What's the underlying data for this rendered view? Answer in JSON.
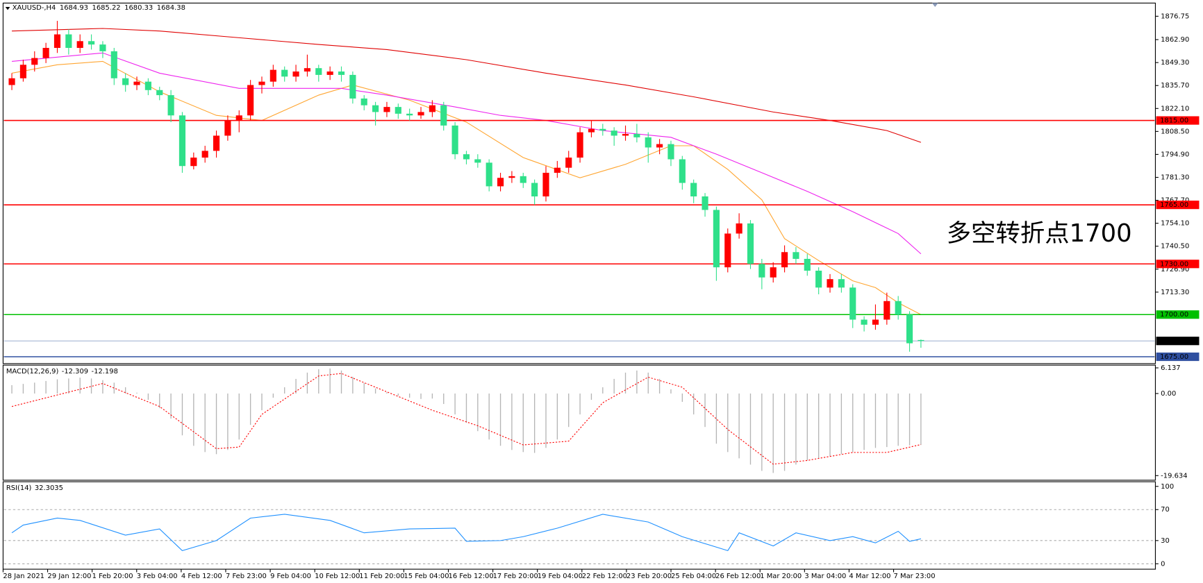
{
  "chart_data": {
    "type": "candlestick",
    "symbol": "XAUUSD-,H4",
    "up_color": "#ff0000",
    "down_color": "#2fe08a",
    "ohlc": [
      [
        1836,
        1843,
        1833,
        1840
      ],
      [
        1840,
        1851,
        1838,
        1848
      ],
      [
        1848,
        1856,
        1844,
        1852
      ],
      [
        1852,
        1861,
        1849,
        1858
      ],
      [
        1858,
        1874,
        1855,
        1866
      ],
      [
        1866,
        1869,
        1854,
        1858
      ],
      [
        1858,
        1866,
        1855,
        1862
      ],
      [
        1862,
        1866,
        1857,
        1860
      ],
      [
        1860,
        1862,
        1852,
        1856
      ],
      [
        1856,
        1858,
        1836,
        1840
      ],
      [
        1840,
        1843,
        1832,
        1836
      ],
      [
        1836,
        1841,
        1833,
        1838
      ],
      [
        1838,
        1840,
        1830,
        1833
      ],
      [
        1833,
        1835,
        1827,
        1830
      ],
      [
        1830,
        1833,
        1814,
        1818
      ],
      [
        1818,
        1820,
        1784,
        1788
      ],
      [
        1788,
        1796,
        1786,
        1793
      ],
      [
        1793,
        1800,
        1790,
        1797
      ],
      [
        1797,
        1809,
        1793,
        1806
      ],
      [
        1806,
        1818,
        1803,
        1815
      ],
      [
        1815,
        1821,
        1808,
        1818
      ],
      [
        1818,
        1839,
        1815,
        1836
      ],
      [
        1836,
        1841,
        1831,
        1838
      ],
      [
        1838,
        1848,
        1835,
        1845
      ],
      [
        1845,
        1847,
        1838,
        1841
      ],
      [
        1841,
        1848,
        1838,
        1844
      ],
      [
        1844,
        1854,
        1841,
        1846
      ],
      [
        1846,
        1848,
        1838,
        1842
      ],
      [
        1842,
        1847,
        1839,
        1844
      ],
      [
        1844,
        1847,
        1838,
        1842
      ],
      [
        1842,
        1844,
        1825,
        1828
      ],
      [
        1828,
        1830,
        1821,
        1824
      ],
      [
        1824,
        1826,
        1812,
        1820
      ],
      [
        1820,
        1826,
        1817,
        1823
      ],
      [
        1823,
        1825,
        1816,
        1819
      ],
      [
        1819,
        1822,
        1815,
        1818
      ],
      [
        1818,
        1823,
        1816,
        1820
      ],
      [
        1820,
        1827,
        1817,
        1824
      ],
      [
        1824,
        1826,
        1809,
        1812
      ],
      [
        1812,
        1814,
        1792,
        1795
      ],
      [
        1795,
        1797,
        1789,
        1792
      ],
      [
        1792,
        1795,
        1787,
        1790
      ],
      [
        1790,
        1792,
        1773,
        1776
      ],
      [
        1776,
        1784,
        1773,
        1781
      ],
      [
        1781,
        1785,
        1778,
        1782
      ],
      [
        1782,
        1784,
        1775,
        1778
      ],
      [
        1778,
        1780,
        1765,
        1770
      ],
      [
        1770,
        1788,
        1767,
        1784
      ],
      [
        1784,
        1791,
        1781,
        1787
      ],
      [
        1787,
        1797,
        1784,
        1793
      ],
      [
        1793,
        1811,
        1790,
        1808
      ],
      [
        1808,
        1815,
        1805,
        1810
      ],
      [
        1810,
        1813,
        1806,
        1809
      ],
      [
        1809,
        1811,
        1800,
        1806
      ],
      [
        1806,
        1812,
        1803,
        1807
      ],
      [
        1807,
        1813,
        1802,
        1805
      ],
      [
        1805,
        1808,
        1790,
        1799
      ],
      [
        1799,
        1804,
        1795,
        1801
      ],
      [
        1801,
        1803,
        1788,
        1792
      ],
      [
        1792,
        1794,
        1774,
        1778
      ],
      [
        1778,
        1780,
        1766,
        1770
      ],
      [
        1770,
        1772,
        1758,
        1762
      ],
      [
        1762,
        1764,
        1720,
        1728
      ],
      [
        1728,
        1751,
        1725,
        1748
      ],
      [
        1748,
        1760,
        1745,
        1754
      ],
      [
        1754,
        1756,
        1727,
        1730
      ],
      [
        1730,
        1733,
        1715,
        1722
      ],
      [
        1722,
        1731,
        1719,
        1728
      ],
      [
        1728,
        1741,
        1725,
        1737
      ],
      [
        1737,
        1740,
        1730,
        1733
      ],
      [
        1733,
        1736,
        1723,
        1726
      ],
      [
        1726,
        1728,
        1712,
        1716
      ],
      [
        1716,
        1724,
        1713,
        1721
      ],
      [
        1721,
        1724,
        1713,
        1716
      ],
      [
        1716,
        1718,
        1692,
        1697
      ],
      [
        1697,
        1699,
        1690,
        1694
      ],
      [
        1694,
        1706,
        1691,
        1697
      ],
      [
        1697,
        1713,
        1694,
        1708
      ],
      [
        1708,
        1711,
        1697,
        1700
      ],
      [
        1700,
        1702,
        1678,
        1683
      ],
      [
        1684.93,
        1685.22,
        1680.33,
        1684.38
      ]
    ],
    "ylim": [
      1671.4,
      1884.1
    ],
    "yticks": [
      1876.75,
      {
        "value": 1862.9,
        "label": "1862.90"
      },
      {
        "value": 1849.3,
        "label": "1849.30"
      },
      {
        "value": 1835.7,
        "label": "1835.70"
      },
      {
        "value": 1822.1,
        "label": "1822.10"
      },
      {
        "value": 1808.5,
        "label": "1808.50"
      },
      {
        "value": 1794.9,
        "label": "1794.90"
      },
      {
        "value": 1781.3,
        "label": "1781.30"
      },
      {
        "value": 1767.7,
        "label": "1767.70"
      },
      {
        "value": 1754.1,
        "label": "1754.10"
      },
      {
        "value": 1740.5,
        "label": "1740.50"
      },
      {
        "value": 1726.9,
        "label": "1726.90"
      },
      {
        "value": 1713.3,
        "label": "1713.30"
      }
    ],
    "levels": [
      {
        "value": 1815,
        "label": "1815.00",
        "color": "#ff0000"
      },
      {
        "value": 1765,
        "label": "1765.00",
        "color": "#ff0000"
      },
      {
        "value": 1730,
        "label": "1730.00",
        "color": "#ff0000"
      },
      {
        "value": 1700,
        "label": "1700.00",
        "color": "#00c000"
      },
      {
        "value": 1675,
        "label": "1675.00",
        "color": "#3050a0"
      }
    ],
    "annotation": {
      "text": "多空转折点1700",
      "color": "#ff0000"
    },
    "moving_averages": [
      {
        "color": "#ffa530",
        "x": [
          0,
          4,
          8,
          13,
          18,
          22,
          27,
          30,
          35,
          40,
          45,
          50,
          54,
          58,
          60,
          63,
          66,
          68,
          71,
          74,
          76,
          78,
          80
        ],
        "values": [
          1843,
          1848,
          1850,
          1832,
          1818,
          1815,
          1830,
          1836,
          1827,
          1814,
          1793,
          1781,
          1789,
          1800,
          1800,
          1786,
          1768,
          1745,
          1732,
          1720,
          1716,
          1707,
          1700
        ]
      },
      {
        "color": "#ee22ee",
        "x": [
          0,
          8,
          13,
          20,
          25,
          29,
          33,
          39,
          43,
          47,
          52,
          58,
          62,
          66,
          70,
          74,
          78,
          80
        ],
        "values": [
          1850,
          1855,
          1843,
          1834,
          1834,
          1834,
          1830,
          1823,
          1818,
          1815,
          1809,
          1805,
          1795,
          1784,
          1773,
          1761,
          1748,
          1736
        ]
      },
      {
        "color": "#e00000",
        "x": [
          0,
          8,
          13,
          20,
          27,
          33,
          40,
          47,
          54,
          60,
          67,
          72,
          77,
          80
        ],
        "values": [
          1868,
          1869.5,
          1868,
          1864,
          1860,
          1857,
          1851,
          1843,
          1836,
          1829,
          1820,
          1815,
          1809,
          1802
        ]
      }
    ],
    "x_labels": [
      "28 Jan 2021",
      "29 Jan 12:00",
      "1 Feb 20:00",
      "3 Feb 04:00",
      "4 Feb 12:00",
      "7 Feb 23:00",
      "9 Feb 04:00",
      "10 Feb 12:00",
      "11 Feb 20:00",
      "15 Feb 04:00",
      "16 Feb 12:00",
      "17 Feb 20:00",
      "19 Feb 04:00",
      "22 Feb 12:00",
      "23 Feb 20:00",
      "25 Feb 04:00",
      "26 Feb 12:00",
      "1 Mar 20:00",
      "3 Mar 04:00",
      "4 Mar 12:00",
      "7 Mar 23:00"
    ],
    "macd": {
      "label": "MACD(12,26,9)",
      "histogram_color": "#b4b4b4",
      "histogram": [
        2.0,
        2.3,
        2.6,
        3.0,
        3.4,
        3.6,
        3.8,
        3.6,
        3.2,
        2.6,
        1.5,
        0.2,
        -1.5,
        -3.5,
        -6,
        -10,
        -12.5,
        -14,
        -14.5,
        -13.5,
        -11,
        -7.5,
        -4,
        -1,
        1.5,
        3.5,
        5,
        5.8,
        6,
        5.5,
        4,
        2.5,
        1.2,
        0.3,
        -0.5,
        -1,
        -1.3,
        -1.2,
        -2.5,
        -5,
        -7,
        -9,
        -11,
        -12.5,
        -13.5,
        -14,
        -14.2,
        -13,
        -11,
        -8,
        -5,
        -1.5,
        1.5,
        3.5,
        5,
        5.5,
        5,
        3.5,
        1,
        -2,
        -5,
        -8,
        -12,
        -14,
        -15.5,
        -17,
        -18.5,
        -19,
        -18.5,
        -17,
        -16,
        -15.5,
        -15,
        -14.5,
        -14,
        -13.5,
        -13,
        -12.8,
        -12.5,
        -12.4,
        -12.309
      ],
      "signal": {
        "color": "#ff0000",
        "x": [
          0,
          8,
          13,
          18,
          20,
          22,
          27,
          29,
          32,
          37,
          41,
          45,
          49,
          52,
          56,
          59,
          63,
          67,
          70,
          74,
          77,
          80
        ],
        "values": [
          -3.1,
          2.4,
          -3.1,
          -13.2,
          -12.8,
          -5,
          4.2,
          4.8,
          1.5,
          -4,
          -7.7,
          -12.3,
          -11.4,
          -2.2,
          3.9,
          1.5,
          -8.6,
          -16.9,
          -16,
          -14.1,
          -14.1,
          -12.198
        ]
      },
      "ylim": [
        -20.55,
        6.42
      ],
      "yticks": [
        6.137,
        {
          "value": 0,
          "label": "0.00"
        },
        -19.634
      ]
    },
    "rsi": {
      "label": "RSI(14)",
      "color": "#1e90ff",
      "x": [
        0,
        1,
        4,
        6,
        10,
        13,
        15,
        18,
        21,
        24,
        28,
        31,
        35,
        39,
        40,
        43,
        45,
        48,
        52,
        56,
        59,
        63,
        64,
        67,
        69,
        72,
        74,
        76,
        78,
        79,
        80
      ],
      "values": [
        40,
        50,
        59,
        56,
        37,
        45,
        17,
        30,
        59,
        64,
        56,
        40,
        45,
        46,
        29,
        30,
        35,
        46,
        64,
        54,
        35,
        17,
        40,
        23,
        40,
        30,
        35,
        27,
        42,
        29,
        32.3035
      ],
      "ylim": [
        -6,
        105
      ],
      "yticks": [
        100,
        70,
        30,
        0
      ]
    }
  }
}
